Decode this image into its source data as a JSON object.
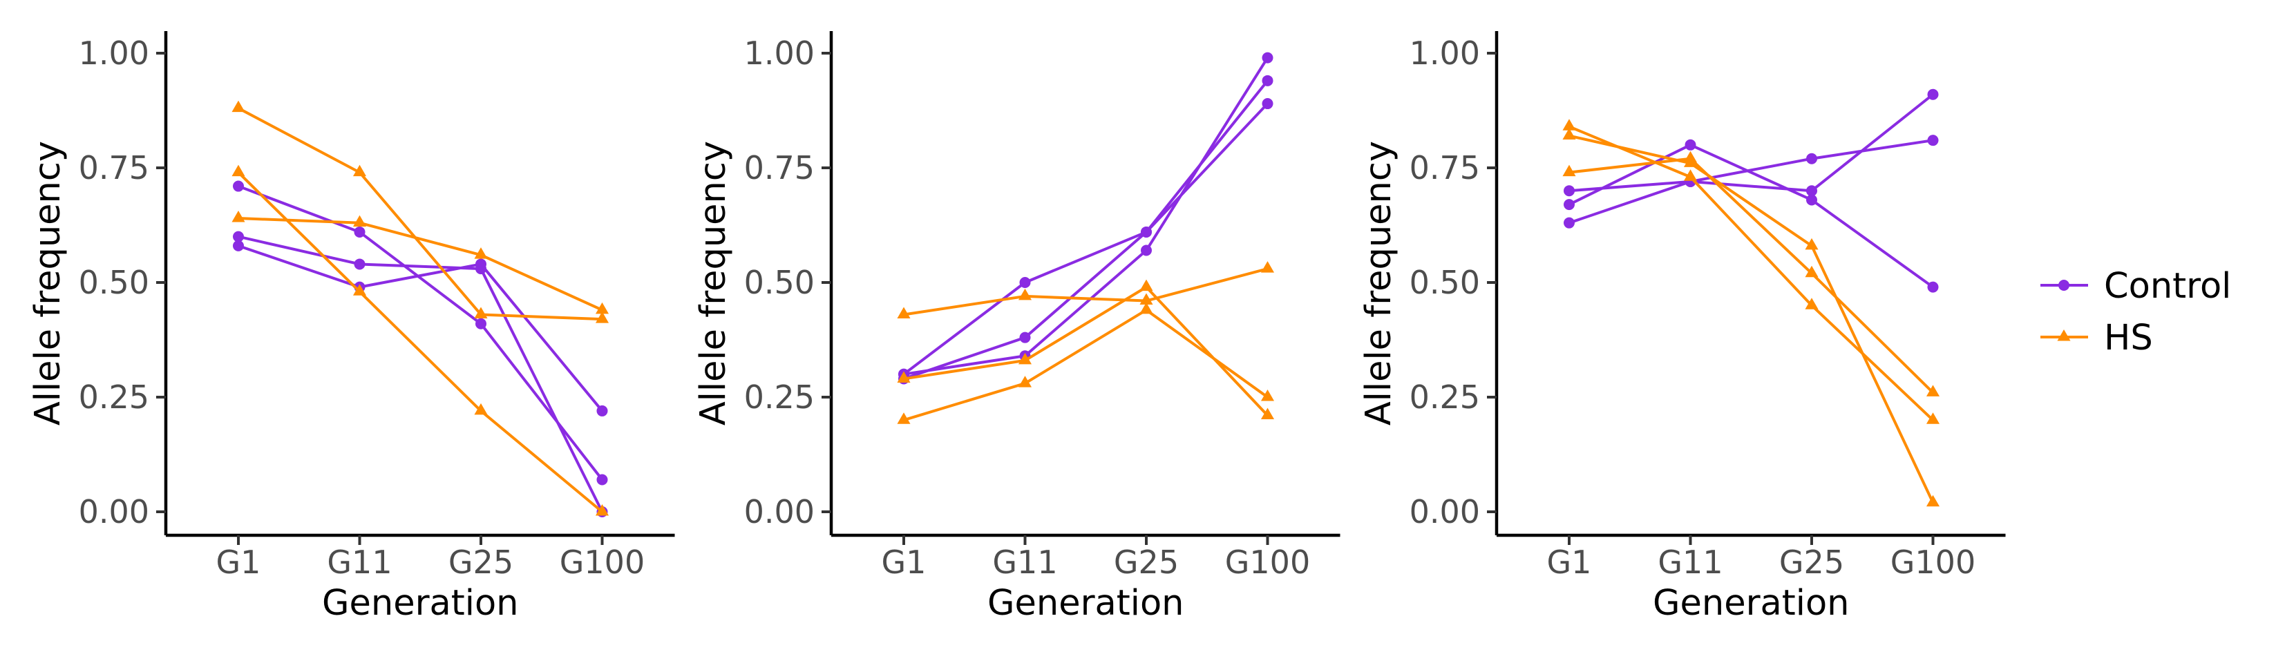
{
  "chart_data": [
    {
      "type": "line",
      "categories": [
        "G1",
        "G11",
        "G25",
        "G100"
      ],
      "xlabel": "Generation",
      "ylabel": "Allele frequency",
      "ylim": [
        0,
        1
      ],
      "yticks": [
        "0.00",
        "0.25",
        "0.50",
        "0.75",
        "1.00"
      ],
      "series": [
        {
          "group": "Control",
          "values": [
            0.71,
            0.61,
            0.41,
            0.07
          ]
        },
        {
          "group": "Control",
          "values": [
            0.6,
            0.54,
            0.53,
            0.0
          ]
        },
        {
          "group": "Control",
          "values": [
            0.58,
            0.49,
            0.54,
            0.22
          ]
        },
        {
          "group": "HS",
          "values": [
            0.88,
            0.74,
            0.43,
            0.42
          ]
        },
        {
          "group": "HS",
          "values": [
            0.74,
            0.48,
            0.22,
            0.0
          ]
        },
        {
          "group": "HS",
          "values": [
            0.64,
            0.63,
            0.56,
            0.44
          ]
        }
      ]
    },
    {
      "type": "line",
      "categories": [
        "G1",
        "G11",
        "G25",
        "G100"
      ],
      "xlabel": "Generation",
      "ylabel": "Allele frequency",
      "ylim": [
        0,
        1
      ],
      "yticks": [
        "0.00",
        "0.25",
        "0.50",
        "0.75",
        "1.00"
      ],
      "series": [
        {
          "group": "Control",
          "values": [
            0.3,
            0.5,
            0.61,
            0.89
          ]
        },
        {
          "group": "Control",
          "values": [
            0.29,
            0.38,
            0.61,
            0.94
          ]
        },
        {
          "group": "Control",
          "values": [
            0.3,
            0.34,
            0.57,
            0.99
          ]
        },
        {
          "group": "HS",
          "values": [
            0.43,
            0.47,
            0.46,
            0.53
          ]
        },
        {
          "group": "HS",
          "values": [
            0.29,
            0.33,
            0.49,
            0.21
          ]
        },
        {
          "group": "HS",
          "values": [
            0.2,
            0.28,
            0.44,
            0.25
          ]
        }
      ]
    },
    {
      "type": "line",
      "categories": [
        "G1",
        "G11",
        "G25",
        "G100"
      ],
      "xlabel": "Generation",
      "ylabel": "Allele frequency",
      "ylim": [
        0,
        1
      ],
      "yticks": [
        "0.00",
        "0.25",
        "0.50",
        "0.75",
        "1.00"
      ],
      "series": [
        {
          "group": "Control",
          "values": [
            0.7,
            0.72,
            0.77,
            0.81
          ]
        },
        {
          "group": "Control",
          "values": [
            0.67,
            0.8,
            0.68,
            0.49
          ]
        },
        {
          "group": "Control",
          "values": [
            0.63,
            0.72,
            0.7,
            0.91
          ]
        },
        {
          "group": "HS",
          "values": [
            0.84,
            0.73,
            0.45,
            0.2
          ]
        },
        {
          "group": "HS",
          "values": [
            0.82,
            0.76,
            0.58,
            0.02
          ]
        },
        {
          "group": "HS",
          "values": [
            0.74,
            0.77,
            0.52,
            0.26
          ]
        }
      ]
    }
  ],
  "legend": {
    "position": "right",
    "items": [
      {
        "label": "Control",
        "color": "#8a2be2",
        "marker": "circle"
      },
      {
        "label": "HS",
        "color": "#ff8c00",
        "marker": "triangle"
      }
    ]
  },
  "colors": {
    "Control": "#8a2be2",
    "HS": "#ff8c00"
  }
}
